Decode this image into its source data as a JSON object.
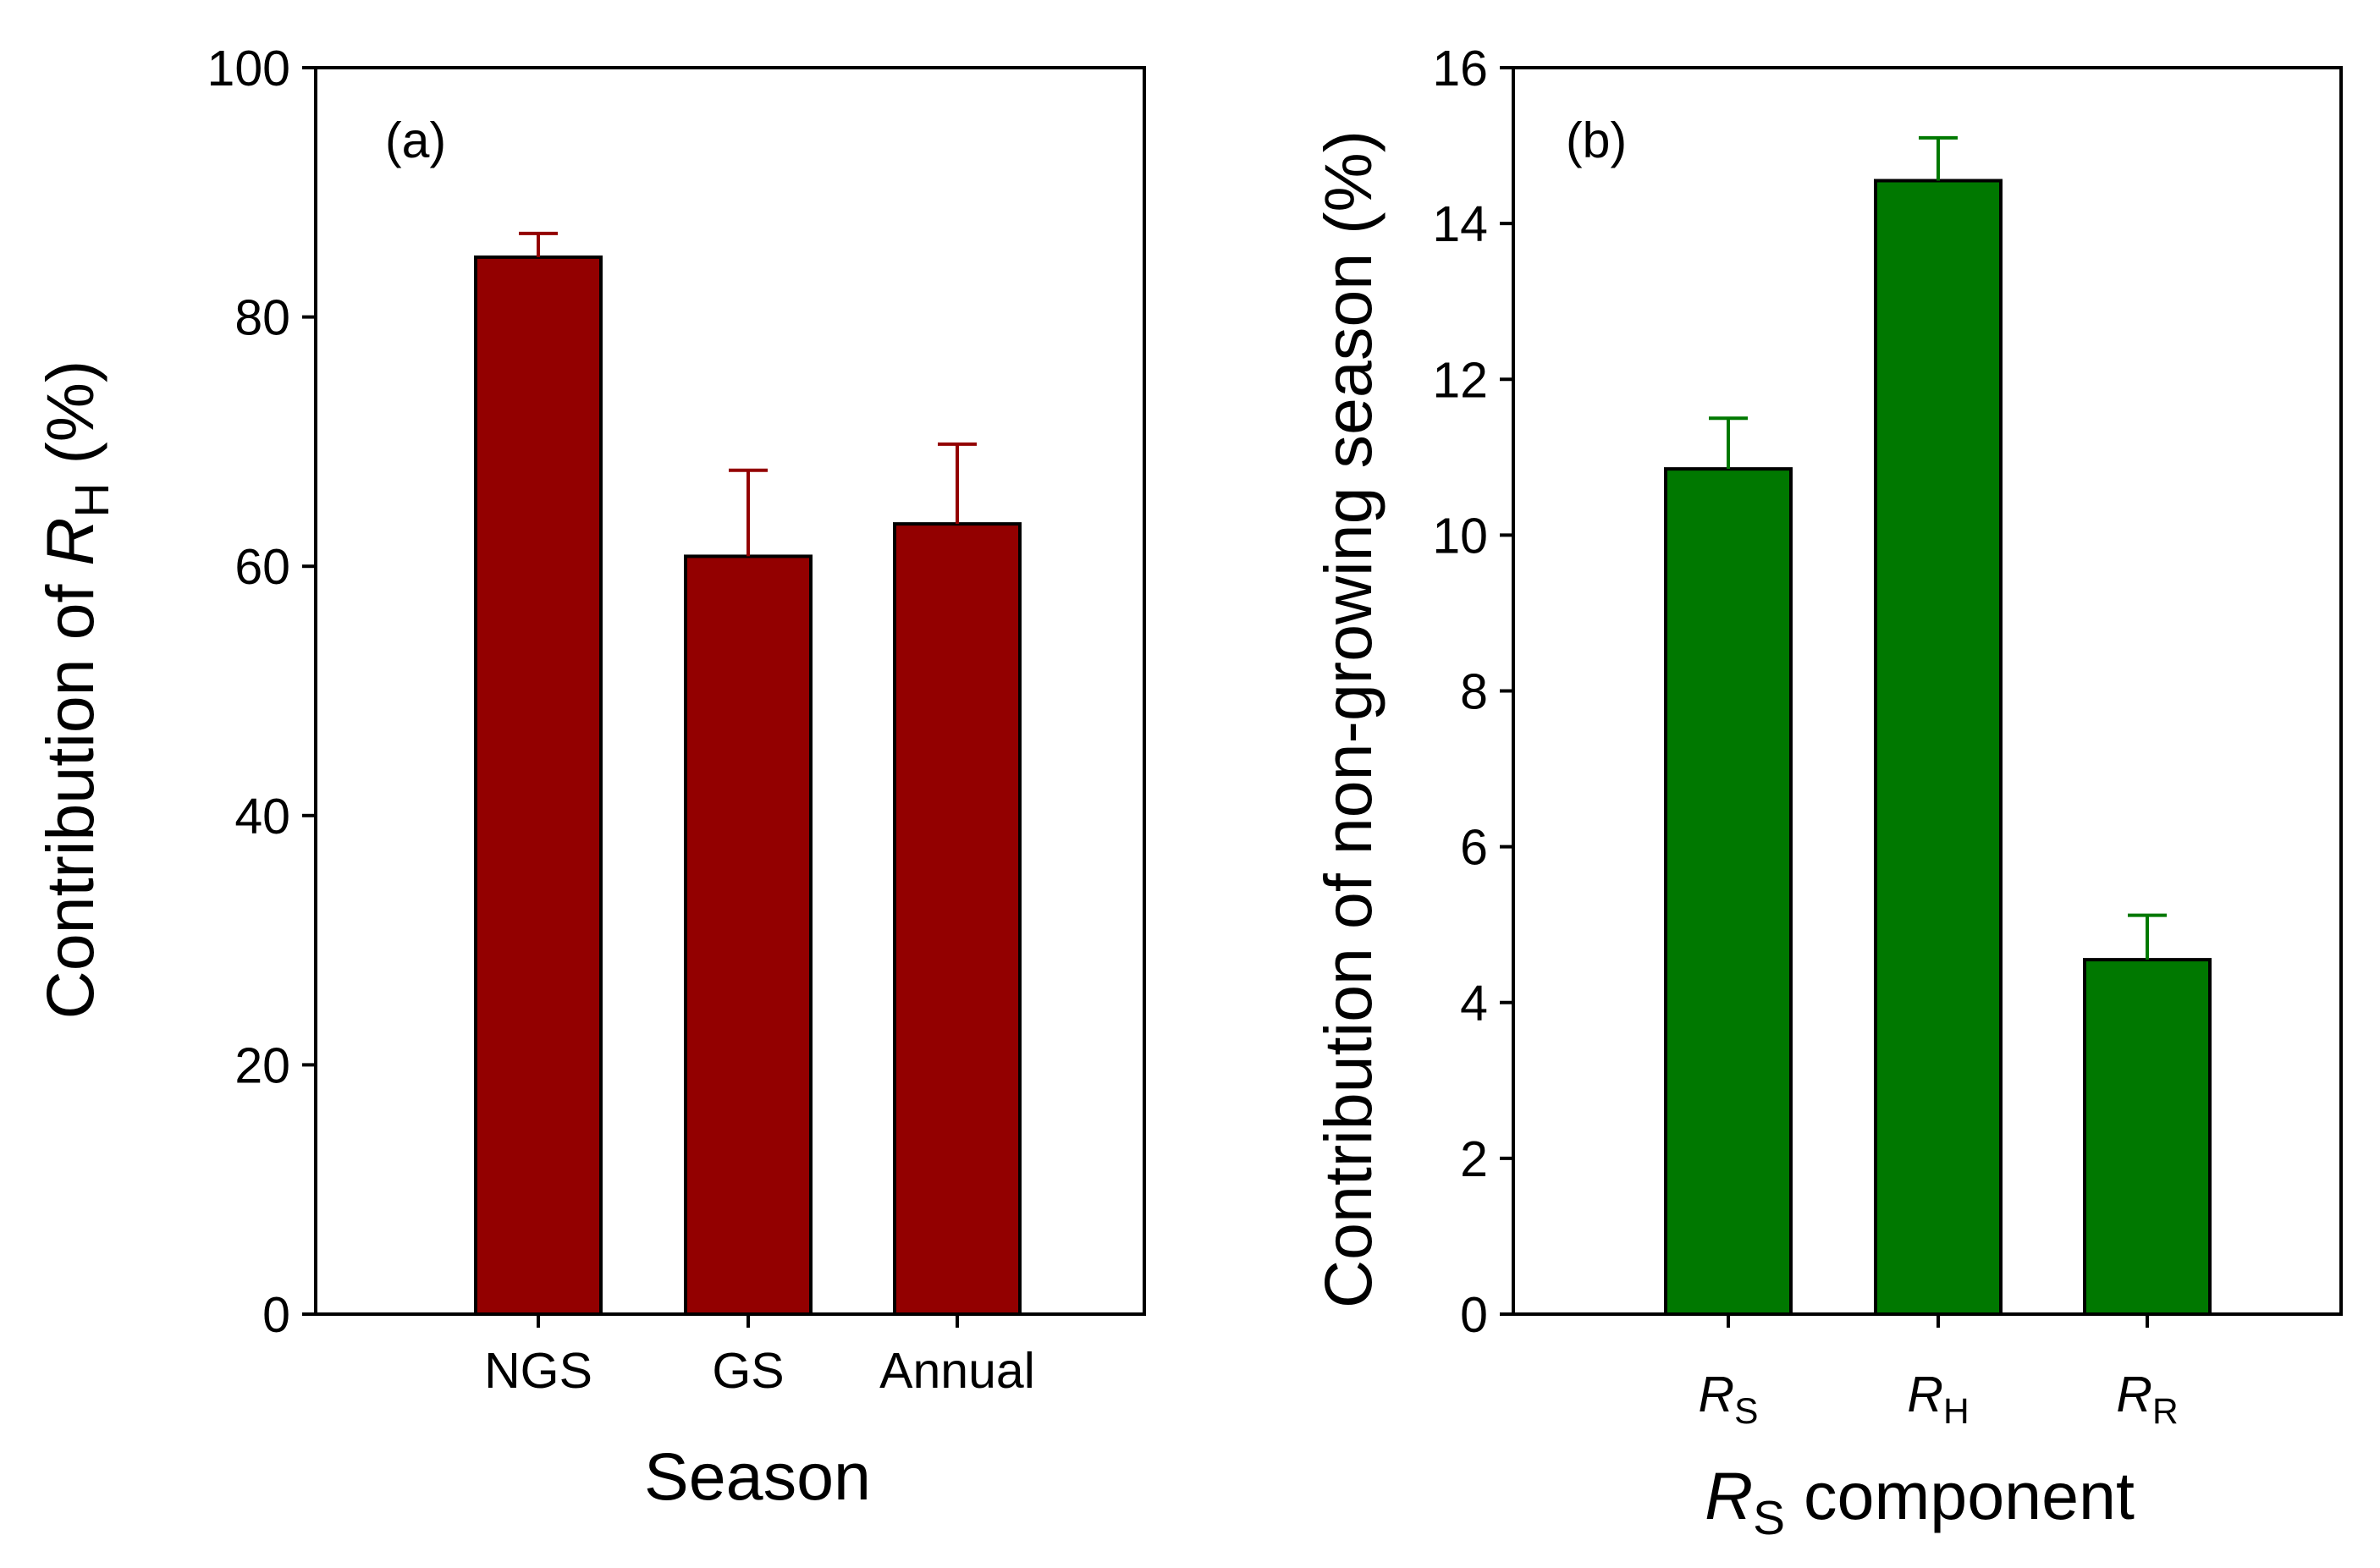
{
  "chart_data": [
    {
      "panel_label": "(a)",
      "type": "bar",
      "title": "",
      "ylabel_prefix": "Contribution of ",
      "ylabel_var": "R",
      "ylabel_sub": "H",
      "ylabel_suffix": " (%)",
      "xlabel": "Season",
      "ylim": [
        0,
        100
      ],
      "yticks": [
        "0",
        "20",
        "40",
        "60",
        "80",
        "100"
      ],
      "ytick_values": [
        0,
        20,
        40,
        60,
        80,
        100
      ],
      "bar_color": "#930000",
      "error_color": "#930000",
      "categories": [
        {
          "label": "NGS",
          "var": "",
          "sub": ""
        },
        {
          "label": "GS",
          "var": "",
          "sub": ""
        },
        {
          "label": "Annual",
          "var": "",
          "sub": ""
        }
      ],
      "values": [
        84.8,
        60.8,
        63.4
      ],
      "errors": [
        1.9,
        6.9,
        6.4
      ]
    },
    {
      "panel_label": "(b)",
      "type": "bar",
      "title": "",
      "ylabel_prefix": "Contribution of non-growing season (%)",
      "ylabel_var": "",
      "ylabel_sub": "",
      "ylabel_suffix": "",
      "xlabel_var": "R",
      "xlabel_sub": "S",
      "xlabel_suffix": " component",
      "ylim": [
        0,
        16
      ],
      "yticks": [
        "0",
        "2",
        "4",
        "6",
        "8",
        "10",
        "12",
        "14",
        "16"
      ],
      "ytick_values": [
        0,
        2,
        4,
        6,
        8,
        10,
        12,
        14,
        16
      ],
      "bar_color": "#007800",
      "error_color": "#007800",
      "categories": [
        {
          "label": "",
          "var": "R",
          "sub": "S"
        },
        {
          "label": "",
          "var": "R",
          "sub": "H"
        },
        {
          "label": "",
          "var": "R",
          "sub": "R"
        }
      ],
      "values": [
        10.85,
        14.55,
        4.55
      ],
      "errors": [
        0.65,
        0.55,
        0.57
      ]
    }
  ]
}
